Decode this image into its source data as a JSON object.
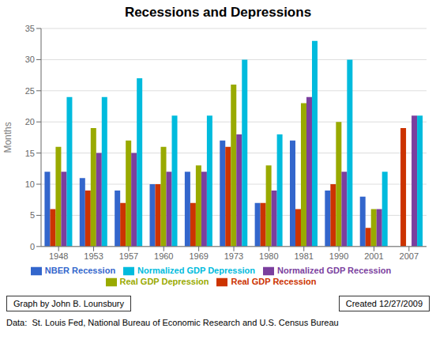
{
  "chart_data": {
    "type": "bar",
    "title": "Recessions and Depressions",
    "ylabel": "Months",
    "categories": [
      "1948",
      "1953",
      "1957",
      "1960",
      "1969",
      "1973",
      "1980",
      "1981",
      "1990",
      "2001",
      "2007"
    ],
    "series": [
      {
        "name": "NBER Recession",
        "color": "#3366CC",
        "values": [
          12,
          11,
          9,
          10,
          12,
          17,
          7,
          17,
          9,
          8,
          0
        ]
      },
      {
        "name": "Real GDP Recession",
        "color": "#CC3300",
        "values": [
          6,
          9,
          7,
          10,
          7,
          16,
          7,
          6,
          10,
          3,
          19
        ]
      },
      {
        "name": "Real GDP Depression",
        "color": "#99AA00",
        "values": [
          16,
          19,
          17,
          16,
          13,
          26,
          13,
          23,
          20,
          6,
          0
        ]
      },
      {
        "name": "Normalized GDP Recession",
        "color": "#7B3F9E",
        "values": [
          12,
          15,
          15,
          12,
          12,
          18,
          9,
          24,
          12,
          6,
          21
        ]
      },
      {
        "name": "Normalized GDP Depression",
        "color": "#00BBDD",
        "values": [
          24,
          24,
          27,
          21,
          21,
          30,
          18,
          33,
          30,
          12,
          21
        ]
      }
    ],
    "ylim": [
      0,
      35
    ],
    "yticks": [
      0,
      5,
      10,
      15,
      20,
      25,
      30,
      35
    ],
    "grid": true,
    "legend": "bottom",
    "annotations": [
      "Graph by John B. Lounsbury",
      "Created 12/27/2009",
      "Data:  St. Louis Fed, National Bureau of Economic Research and U.S. Census Bureau"
    ]
  }
}
